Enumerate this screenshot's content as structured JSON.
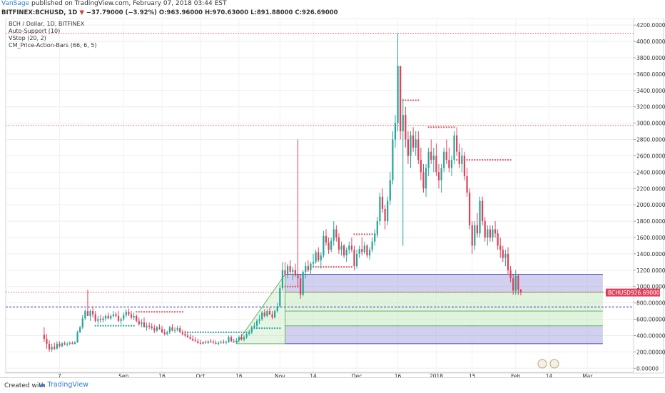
{
  "header": {
    "author": "VanSage",
    "published_text": "published on TradingView.com, February 07, 2018 03:44 EST",
    "symbol": "BITFINEX:BCHUSD, 1D",
    "arrow": "▼",
    "change": "−37.79000 (−3.92%)",
    "open": "O:963.96000",
    "high": "H:970.63000",
    "low": "L:891.88000",
    "close": "C:926.69000",
    "last_value": "926.69000"
  },
  "chart_labels": {
    "title": "BCH / Dollar, 1D, BITFINEX",
    "indicators": [
      "Auto-Support (10)",
      "VStop (20, 2)",
      "CM_Price-Action-Bars (66, 6, 5)"
    ],
    "price_tag_symbol": "BCHUSD",
    "price_tag_value": "926.69000"
  },
  "footer": {
    "created_with": "Created with",
    "brand": "TradingView"
  },
  "colors": {
    "up": "#26a69a",
    "down": "#e0405a",
    "vstop": "#e0505a",
    "axis_text": "#333333",
    "fib_blue": "#9a9adb",
    "fib_green": "#b9e4b3",
    "dashed_blue": "#2a2ad0"
  },
  "chart_data": {
    "type": "candlestick",
    "y_axis": {
      "ticks": [
        0,
        200,
        400,
        600,
        800,
        1000,
        1200,
        1400,
        1600,
        1800,
        2000,
        2200,
        2400,
        2600,
        2800,
        3000,
        3200,
        3400,
        3600,
        3800,
        4000,
        4200
      ],
      "tick_labels": [
        "0.00000",
        "200.00000",
        "400.00000",
        "600.00000",
        "800.00000",
        "1000.00000",
        "1200.00000",
        "1400.00000",
        "1600.00000",
        "1800.00000",
        "2000.00000",
        "2200.00000",
        "2400.00000",
        "2600.00000",
        "2800.00000",
        "3000.00000",
        "3200.00000",
        "3400.00000",
        "3600.00000",
        "3800.00000",
        "4000.00000",
        "4200.00000"
      ],
      "ylim": [
        -50,
        4280
      ]
    },
    "x_axis": {
      "labels": [
        "7",
        "Sep",
        "16",
        "Oct",
        "16",
        "Nov",
        "14",
        "Dec",
        "16",
        "2018",
        "15",
        "Feb",
        "14",
        "Mar"
      ],
      "label_days": [
        6,
        31,
        46,
        61,
        76,
        92,
        105,
        122,
        138,
        153,
        167,
        184,
        197,
        212
      ],
      "xlim": [
        -15,
        230
      ]
    },
    "candles_ohlc": [
      [
        0,
        410,
        500,
        320,
        360
      ],
      [
        1,
        360,
        420,
        240,
        300
      ],
      [
        2,
        300,
        340,
        200,
        230
      ],
      [
        3,
        230,
        300,
        200,
        260
      ],
      [
        4,
        260,
        310,
        220,
        240
      ],
      [
        5,
        240,
        330,
        230,
        300
      ],
      [
        6,
        300,
        330,
        250,
        270
      ],
      [
        7,
        270,
        320,
        255,
        305
      ],
      [
        8,
        305,
        330,
        280,
        290
      ],
      [
        9,
        290,
        320,
        270,
        300
      ],
      [
        10,
        300,
        330,
        280,
        310
      ],
      [
        11,
        310,
        330,
        290,
        300
      ],
      [
        12,
        300,
        330,
        290,
        320
      ],
      [
        13,
        320,
        460,
        310,
        440
      ],
      [
        14,
        440,
        520,
        430,
        500
      ],
      [
        15,
        500,
        650,
        480,
        610
      ],
      [
        16,
        610,
        720,
        590,
        700
      ],
      [
        17,
        700,
        960,
        650,
        640
      ],
      [
        18,
        640,
        720,
        580,
        700
      ],
      [
        19,
        700,
        760,
        620,
        660
      ],
      [
        20,
        660,
        700,
        560,
        580
      ],
      [
        21,
        580,
        640,
        540,
        600
      ],
      [
        22,
        600,
        650,
        560,
        590
      ],
      [
        23,
        590,
        640,
        560,
        610
      ],
      [
        24,
        610,
        660,
        580,
        640
      ],
      [
        25,
        640,
        680,
        600,
        610
      ],
      [
        26,
        610,
        660,
        590,
        640
      ],
      [
        27,
        640,
        700,
        620,
        660
      ],
      [
        28,
        660,
        690,
        620,
        640
      ],
      [
        29,
        640,
        700,
        560,
        580
      ],
      [
        30,
        580,
        620,
        540,
        600
      ],
      [
        31,
        600,
        680,
        580,
        650
      ],
      [
        32,
        650,
        720,
        620,
        690
      ],
      [
        33,
        690,
        730,
        640,
        660
      ],
      [
        34,
        660,
        700,
        600,
        620
      ],
      [
        35,
        620,
        680,
        590,
        640
      ],
      [
        36,
        640,
        660,
        560,
        580
      ],
      [
        37,
        580,
        620,
        520,
        540
      ],
      [
        38,
        540,
        600,
        500,
        560
      ],
      [
        39,
        560,
        620,
        520,
        500
      ],
      [
        40,
        500,
        560,
        460,
        520
      ],
      [
        41,
        520,
        560,
        480,
        510
      ],
      [
        42,
        510,
        550,
        470,
        490
      ],
      [
        43,
        490,
        530,
        430,
        460
      ],
      [
        44,
        460,
        520,
        440,
        500
      ],
      [
        45,
        500,
        540,
        470,
        480
      ],
      [
        46,
        480,
        520,
        430,
        440
      ],
      [
        47,
        440,
        480,
        400,
        420
      ],
      [
        48,
        420,
        460,
        400,
        440
      ],
      [
        49,
        440,
        520,
        420,
        500
      ],
      [
        50,
        500,
        540,
        450,
        460
      ],
      [
        51,
        460,
        500,
        430,
        470
      ],
      [
        52,
        470,
        520,
        450,
        490
      ],
      [
        53,
        490,
        520,
        430,
        440
      ],
      [
        54,
        440,
        470,
        400,
        420
      ],
      [
        55,
        420,
        460,
        380,
        400
      ],
      [
        56,
        400,
        440,
        370,
        380
      ],
      [
        57,
        380,
        420,
        350,
        360
      ],
      [
        58,
        360,
        400,
        330,
        340
      ],
      [
        59,
        340,
        380,
        320,
        330
      ],
      [
        60,
        330,
        360,
        300,
        310
      ],
      [
        61,
        310,
        350,
        290,
        300
      ],
      [
        62,
        300,
        330,
        290,
        320
      ],
      [
        63,
        320,
        340,
        300,
        310
      ],
      [
        64,
        310,
        340,
        300,
        330
      ],
      [
        65,
        330,
        360,
        310,
        320
      ],
      [
        66,
        320,
        350,
        300,
        310
      ],
      [
        67,
        310,
        340,
        290,
        300
      ],
      [
        68,
        300,
        330,
        280,
        310
      ],
      [
        69,
        310,
        340,
        300,
        320
      ],
      [
        70,
        320,
        350,
        300,
        310
      ],
      [
        71,
        310,
        340,
        290,
        320
      ],
      [
        72,
        320,
        400,
        310,
        380
      ],
      [
        73,
        380,
        400,
        320,
        330
      ],
      [
        74,
        330,
        360,
        310,
        320
      ],
      [
        75,
        320,
        370,
        300,
        340
      ],
      [
        76,
        340,
        400,
        320,
        380
      ],
      [
        77,
        380,
        420,
        340,
        350
      ],
      [
        78,
        350,
        400,
        330,
        380
      ],
      [
        79,
        380,
        440,
        360,
        420
      ],
      [
        80,
        420,
        470,
        400,
        440
      ],
      [
        81,
        440,
        520,
        420,
        500
      ],
      [
        82,
        500,
        560,
        480,
        520
      ],
      [
        83,
        520,
        600,
        500,
        580
      ],
      [
        84,
        580,
        650,
        540,
        600
      ],
      [
        85,
        600,
        700,
        580,
        680
      ],
      [
        86,
        680,
        720,
        620,
        640
      ],
      [
        87,
        640,
        720,
        620,
        700
      ],
      [
        88,
        700,
        740,
        650,
        660
      ],
      [
        89,
        660,
        700,
        600,
        620
      ],
      [
        90,
        620,
        720,
        610,
        700
      ],
      [
        91,
        700,
        800,
        680,
        760
      ],
      [
        92,
        760,
        1020,
        740,
        980
      ],
      [
        93,
        980,
        1300,
        950,
        1200
      ],
      [
        94,
        1200,
        1300,
        1100,
        1150
      ],
      [
        95,
        1150,
        1280,
        1100,
        1250
      ],
      [
        96,
        1250,
        1320,
        1150,
        1180
      ],
      [
        97,
        1180,
        1240,
        1080,
        1200
      ],
      [
        98,
        1200,
        1280,
        1120,
        1140
      ],
      [
        99,
        1140,
        2800,
        1000,
        1100
      ],
      [
        100,
        1100,
        1150,
        850,
        900
      ],
      [
        101,
        900,
        1200,
        880,
        1180
      ],
      [
        102,
        1180,
        1300,
        1100,
        1250
      ],
      [
        103,
        1250,
        1320,
        1180,
        1200
      ],
      [
        104,
        1200,
        1300,
        1150,
        1280
      ],
      [
        105,
        1280,
        1400,
        1250,
        1300
      ],
      [
        106,
        1300,
        1450,
        1280,
        1420
      ],
      [
        107,
        1420,
        1480,
        1300,
        1320
      ],
      [
        108,
        1320,
        1420,
        1220,
        1380
      ],
      [
        109,
        1380,
        1680,
        1350,
        1620
      ],
      [
        110,
        1620,
        1700,
        1500,
        1540
      ],
      [
        111,
        1540,
        1600,
        1400,
        1450
      ],
      [
        112,
        1450,
        1600,
        1420,
        1560
      ],
      [
        113,
        1560,
        1800,
        1500,
        1700
      ],
      [
        114,
        1700,
        1750,
        1550,
        1600
      ],
      [
        115,
        1600,
        1650,
        1400,
        1450
      ],
      [
        116,
        1450,
        1550,
        1380,
        1500
      ],
      [
        117,
        1500,
        1520,
        1350,
        1380
      ],
      [
        118,
        1380,
        1480,
        1300,
        1450
      ],
      [
        119,
        1450,
        1550,
        1400,
        1500
      ],
      [
        120,
        1500,
        1600,
        1420,
        1450
      ],
      [
        121,
        1450,
        1500,
        1200,
        1250
      ],
      [
        122,
        1250,
        1450,
        1220,
        1400
      ],
      [
        123,
        1400,
        1500,
        1350,
        1460
      ],
      [
        124,
        1460,
        1600,
        1380,
        1420
      ],
      [
        125,
        1420,
        1550,
        1400,
        1500
      ],
      [
        126,
        1500,
        1520,
        1350,
        1380
      ],
      [
        127,
        1380,
        1480,
        1330,
        1450
      ],
      [
        128,
        1450,
        1600,
        1420,
        1550
      ],
      [
        129,
        1550,
        1700,
        1500,
        1650
      ],
      [
        130,
        1650,
        1850,
        1600,
        1800
      ],
      [
        131,
        1800,
        2150,
        1750,
        2100
      ],
      [
        132,
        2100,
        2200,
        1900,
        1950
      ],
      [
        133,
        1950,
        2000,
        1700,
        1800
      ],
      [
        134,
        1800,
        2100,
        1750,
        2050
      ],
      [
        135,
        2050,
        2400,
        2000,
        2300
      ],
      [
        136,
        2300,
        2900,
        2250,
        2800
      ],
      [
        137,
        2800,
        3100,
        2700,
        3000
      ],
      [
        138,
        3000,
        4100,
        2900,
        3700
      ],
      [
        139,
        3700,
        3700,
        2800,
        2900
      ],
      [
        140,
        2900,
        3300,
        1500,
        3100
      ],
      [
        141,
        3100,
        3200,
        2700,
        2800
      ],
      [
        142,
        2800,
        2900,
        2500,
        2600
      ],
      [
        143,
        2600,
        2900,
        2450,
        2850
      ],
      [
        144,
        2850,
        2950,
        2650,
        2700
      ],
      [
        145,
        2700,
        2900,
        2600,
        2800
      ],
      [
        146,
        2800,
        2900,
        2500,
        2550
      ],
      [
        147,
        2550,
        2700,
        2300,
        2400
      ],
      [
        148,
        2400,
        2500,
        2150,
        2200
      ],
      [
        149,
        2200,
        2500,
        2100,
        2450
      ],
      [
        150,
        2450,
        2700,
        2350,
        2650
      ],
      [
        151,
        2650,
        2800,
        2500,
        2550
      ],
      [
        152,
        2550,
        2700,
        2400,
        2600
      ],
      [
        153,
        2600,
        2750,
        2350,
        2400
      ],
      [
        154,
        2400,
        2500,
        2200,
        2300
      ],
      [
        155,
        2300,
        2500,
        2150,
        2450
      ],
      [
        156,
        2450,
        2700,
        2400,
        2650
      ],
      [
        157,
        2650,
        2800,
        2500,
        2550
      ],
      [
        158,
        2550,
        2700,
        2400,
        2450
      ],
      [
        159,
        2450,
        2600,
        2350,
        2550
      ],
      [
        160,
        2550,
        2900,
        2500,
        2850
      ],
      [
        161,
        2850,
        2950,
        2600,
        2650
      ],
      [
        162,
        2650,
        2750,
        2450,
        2500
      ],
      [
        163,
        2500,
        2700,
        2400,
        2600
      ],
      [
        164,
        2600,
        2650,
        2300,
        2350
      ],
      [
        165,
        2350,
        2450,
        2100,
        2150
      ],
      [
        166,
        2150,
        2200,
        1700,
        1750
      ],
      [
        167,
        1750,
        1800,
        1400,
        1500
      ],
      [
        168,
        1500,
        1800,
        1450,
        1750
      ],
      [
        169,
        1750,
        1900,
        1600,
        1650
      ],
      [
        170,
        1650,
        2100,
        1600,
        2050
      ],
      [
        171,
        2050,
        2100,
        1750,
        1800
      ],
      [
        172,
        1800,
        1850,
        1550,
        1600
      ],
      [
        173,
        1600,
        1750,
        1500,
        1700
      ],
      [
        174,
        1700,
        1750,
        1550,
        1600
      ],
      [
        175,
        1600,
        1750,
        1550,
        1700
      ],
      [
        176,
        1700,
        1800,
        1600,
        1650
      ],
      [
        177,
        1650,
        1700,
        1450,
        1500
      ],
      [
        178,
        1500,
        1600,
        1350,
        1450
      ],
      [
        179,
        1450,
        1500,
        1300,
        1350
      ],
      [
        180,
        1350,
        1450,
        1250,
        1400
      ],
      [
        181,
        1400,
        1480,
        1150,
        1200
      ],
      [
        182,
        1200,
        1250,
        1050,
        1100
      ],
      [
        183,
        1100,
        1150,
        900,
        950
      ],
      [
        184,
        950,
        1200,
        900,
        1130
      ],
      [
        185,
        1130,
        1150,
        900,
        960
      ],
      [
        186,
        963.96,
        970.63,
        891.88,
        926.69
      ]
    ],
    "vstop_series": [
      {
        "from": 20,
        "to": 35,
        "level": 520
      },
      {
        "from": 36,
        "to": 54,
        "level": 690
      },
      {
        "from": 55,
        "to": 80,
        "level": 440
      },
      {
        "from": 81,
        "to": 92,
        "level": 490
      },
      {
        "from": 94,
        "to": 100,
        "level": 1000
      },
      {
        "from": 104,
        "to": 120,
        "level": 1240
      },
      {
        "from": 121,
        "to": 130,
        "level": 1640
      },
      {
        "from": 138,
        "to": 146,
        "level": 3280
      },
      {
        "from": 150,
        "to": 160,
        "level": 2950
      },
      {
        "from": 161,
        "to": 182,
        "level": 2550
      }
    ],
    "horizontal_levels": [
      {
        "price": 4100,
        "style": "dotted-red"
      },
      {
        "price": 2970,
        "style": "dotted-red"
      },
      {
        "price": 930,
        "style": "dotted-red"
      },
      {
        "price": 750,
        "style": "dashed-blue"
      }
    ],
    "fib_channel": {
      "anchor_start_day": 75,
      "anchor_start_price": 300,
      "anchor_end_day": 94,
      "anchor_end_price": 1150,
      "end_day": 218,
      "levels": [
        1150,
        930,
        700,
        520,
        300
      ]
    },
    "last_price": 926.69
  }
}
